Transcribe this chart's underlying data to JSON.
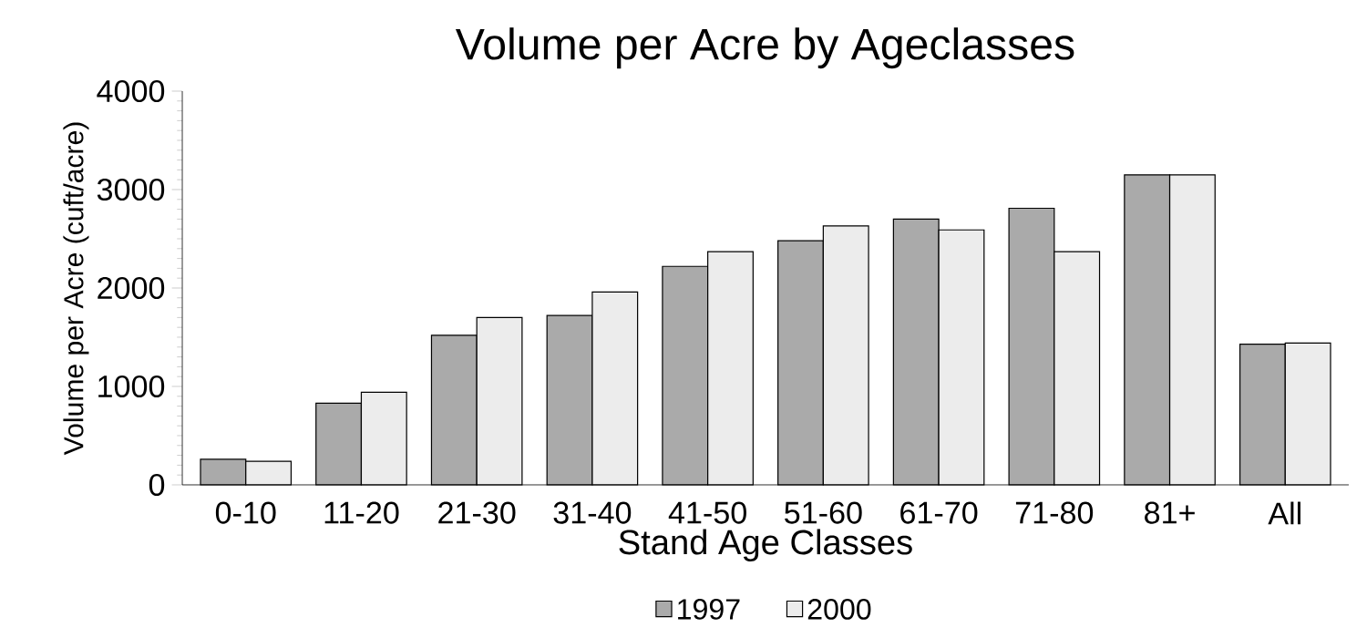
{
  "chart_data": {
    "type": "bar",
    "title": "Volume per Acre by Ageclasses",
    "xlabel": "Stand Age Classes",
    "ylabel": "Volume per Acre (cuft/acre)",
    "categories": [
      "0-10",
      "11-20",
      "21-30",
      "31-40",
      "41-50",
      "51-60",
      "61-70",
      "71-80",
      "81+",
      "All"
    ],
    "series": [
      {
        "name": "1997",
        "color": "#aaaaaa",
        "values": [
          260,
          830,
          1520,
          1720,
          2220,
          2480,
          2700,
          2810,
          3150,
          1430
        ]
      },
      {
        "name": "2000",
        "color": "#ececec",
        "values": [
          240,
          940,
          1700,
          1960,
          2370,
          2630,
          2590,
          2370,
          3150,
          1440
        ]
      }
    ],
    "ylim": [
      0,
      4000
    ],
    "yticks": [
      0,
      1000,
      2000,
      3000,
      4000
    ],
    "legend": "bottom"
  }
}
